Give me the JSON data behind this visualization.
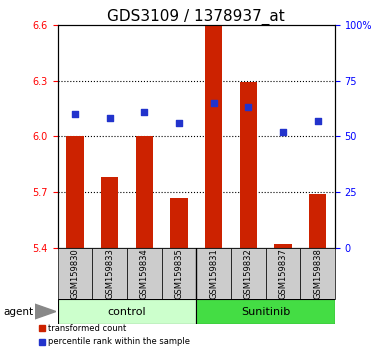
{
  "title": "GDS3109 / 1378937_at",
  "samples": [
    "GSM159830",
    "GSM159833",
    "GSM159834",
    "GSM159835",
    "GSM159831",
    "GSM159832",
    "GSM159837",
    "GSM159838"
  ],
  "groups": [
    "control",
    "control",
    "control",
    "control",
    "Sunitinib",
    "Sunitinib",
    "Sunitinib",
    "Sunitinib"
  ],
  "transformed_count": [
    6.0,
    5.78,
    6.0,
    5.67,
    6.6,
    6.29,
    5.42,
    5.69
  ],
  "percentile_rank": [
    60,
    58,
    61,
    56,
    65,
    63,
    52,
    57
  ],
  "y_min": 5.4,
  "y_max": 6.6,
  "y_ticks": [
    5.4,
    5.7,
    6.0,
    6.3,
    6.6
  ],
  "y2_ticks": [
    0,
    25,
    50,
    75,
    100
  ],
  "bar_color": "#cc2200",
  "dot_color": "#2233cc",
  "control_bg": "#ccffcc",
  "sunitinib_bg": "#44dd44",
  "label_bg": "#cccccc",
  "group_label_fontsize": 8,
  "tick_fontsize": 7,
  "title_fontsize": 11
}
